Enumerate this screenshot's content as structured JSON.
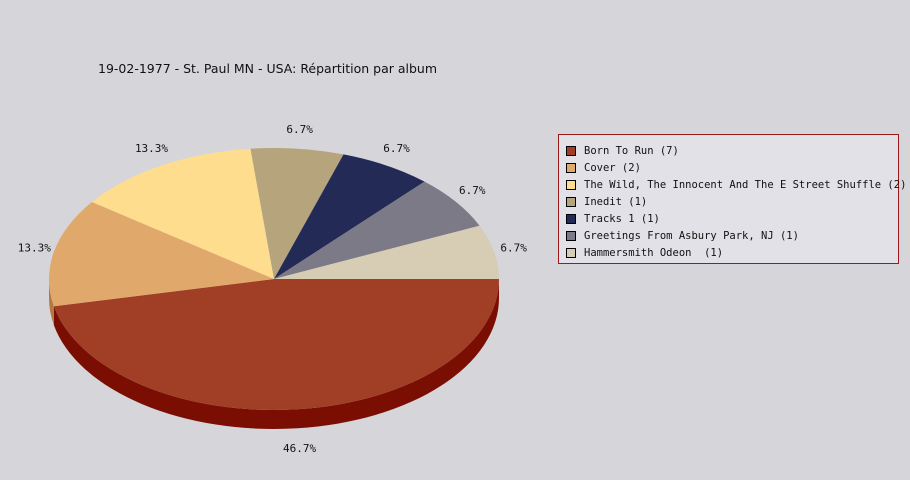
{
  "chart_data": {
    "type": "pie",
    "title": "19-02-1977 - St. Paul MN - USA:  Répartition par album",
    "slices": [
      {
        "label": "Born To Run (7)",
        "value": 7,
        "percent_label": "46.7%",
        "color": "#a03e26",
        "side_color": "#7a0e02"
      },
      {
        "label": "Cover (2)",
        "value": 2,
        "percent_label": "13.3%",
        "color": "#e0a96b",
        "side_color": "#b27a3e"
      },
      {
        "label": "The Wild, The Innocent And The E Street Shuffle (2)",
        "value": 2,
        "percent_label": "13.3%",
        "color": "#fedd8f",
        "side_color": "#c9a85f"
      },
      {
        "label": "Inedit (1)",
        "value": 1,
        "percent_label": "6.7%",
        "color": "#b6a47c",
        "side_color": "#8a7a56"
      },
      {
        "label": "Tracks 1 (1)",
        "value": 1,
        "percent_label": "6.7%",
        "color": "#222a55",
        "side_color": "#11163a"
      },
      {
        "label": "Greetings From Asbury Park, NJ (1)",
        "value": 1,
        "percent_label": "6.7%",
        "color": "#7c7a86",
        "side_color": "#55535e"
      },
      {
        "label": "Hammersmith Odeon  (1)",
        "value": 1,
        "percent_label": "6.7%",
        "color": "#d7ccb4",
        "side_color": "#aaa08a"
      }
    ],
    "legend_position": "right",
    "is_3d": true
  }
}
